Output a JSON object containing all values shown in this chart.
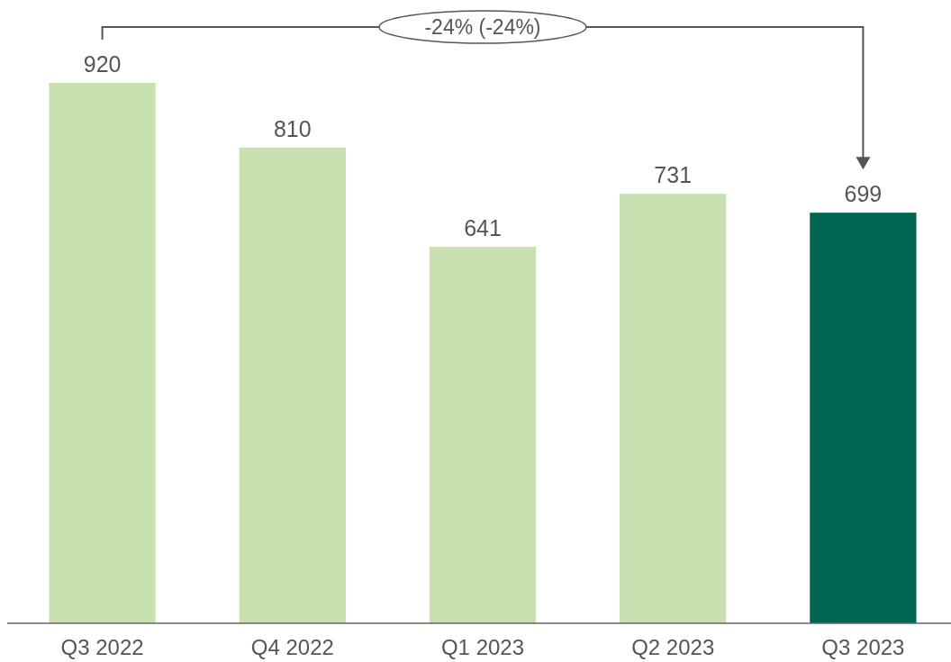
{
  "chart_data": {
    "type": "bar",
    "categories": [
      "Q3 2022",
      "Q4 2022",
      "Q1 2023",
      "Q2 2023",
      "Q3 2023"
    ],
    "values": [
      920,
      810,
      641,
      731,
      699
    ],
    "colors": [
      "#c9e0b1",
      "#c9e0b1",
      "#c9e0b1",
      "#c9e0b1",
      "#006652"
    ],
    "data_labels": true,
    "annotations": [
      "-24% (-24%)"
    ]
  }
}
